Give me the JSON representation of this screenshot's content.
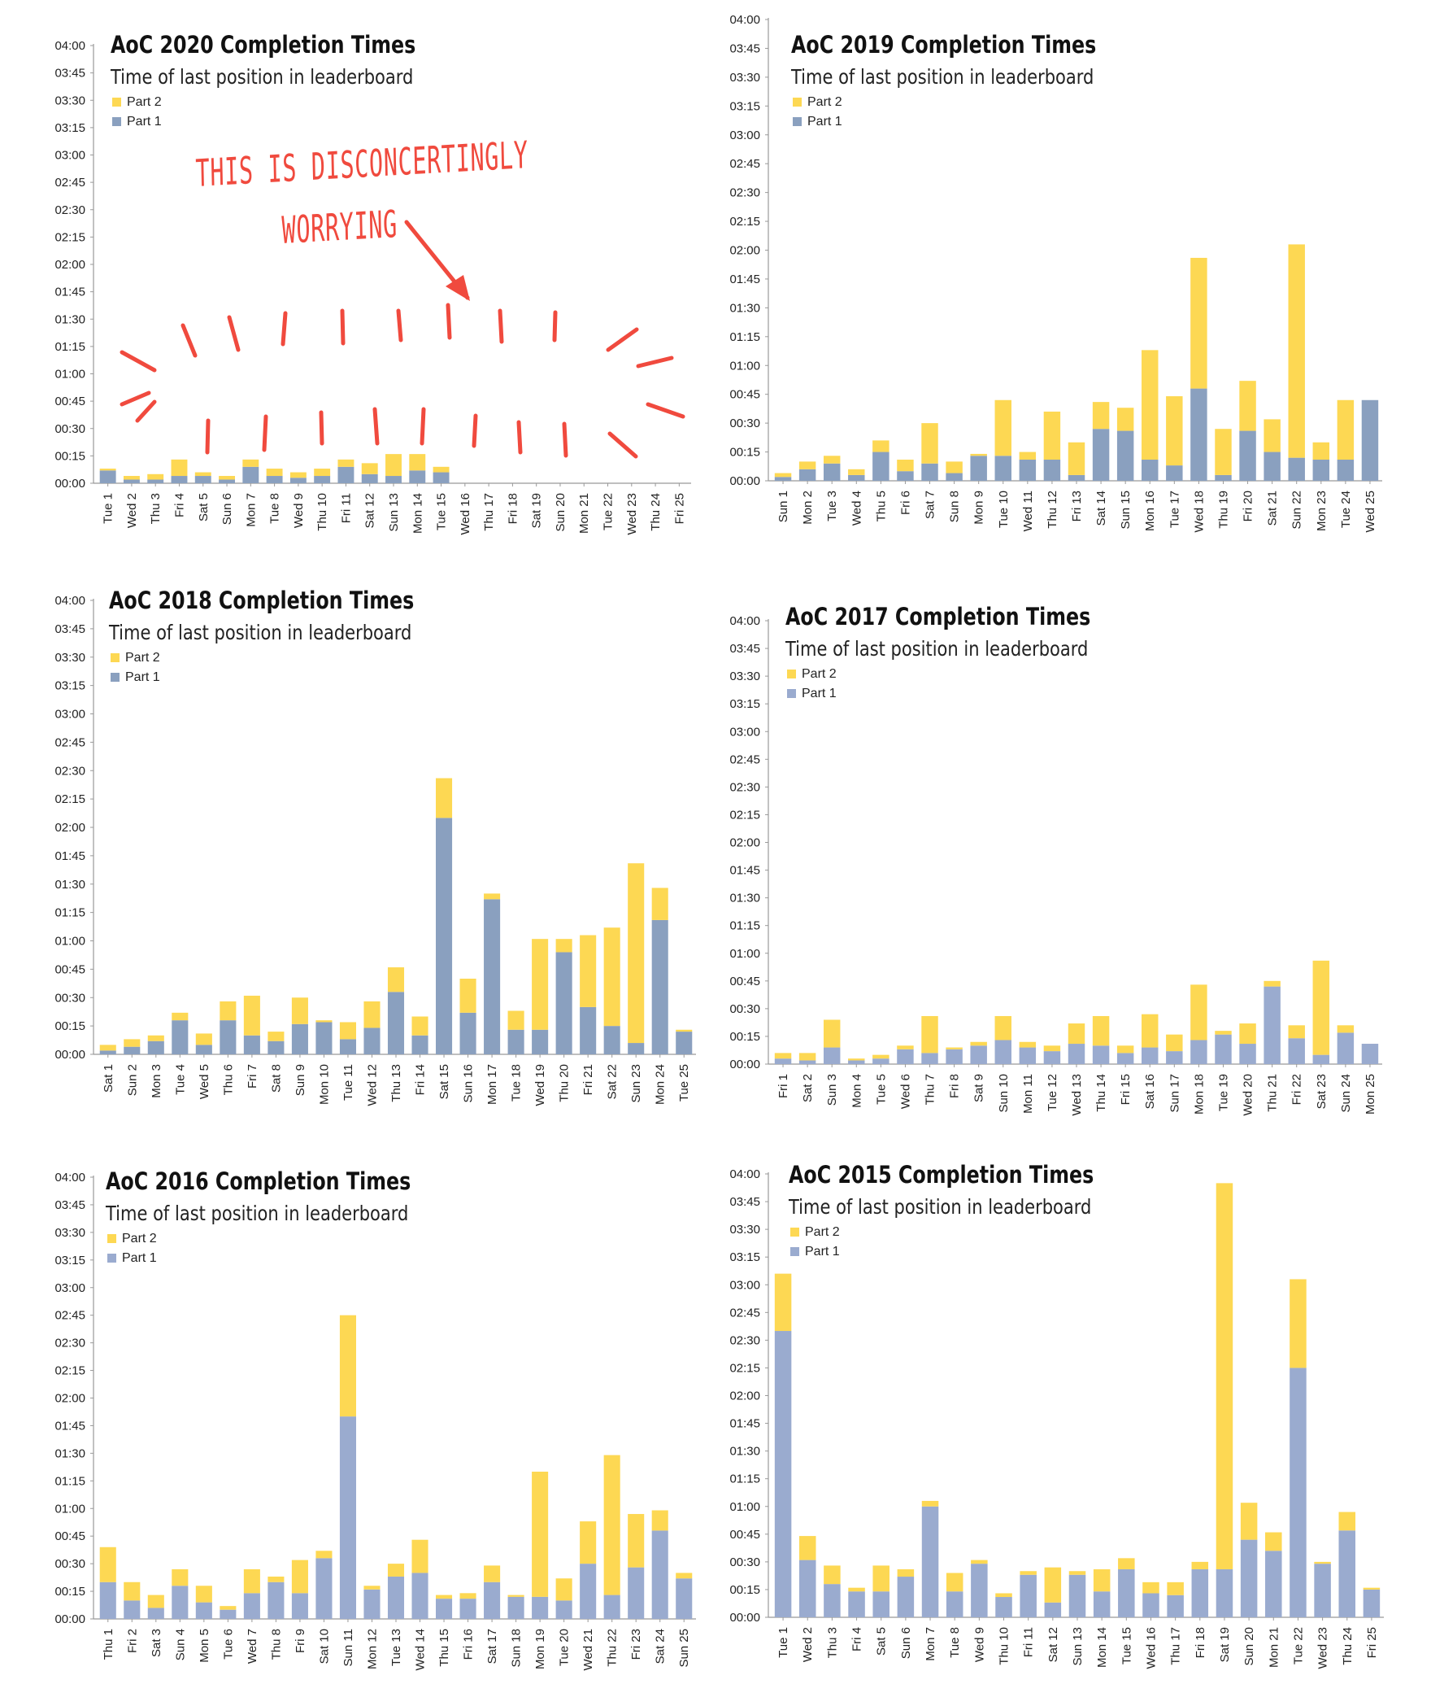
{
  "colors": {
    "part1": "#8aa0bf",
    "part1_light": "#9aabcf",
    "part2": "#fdd853",
    "axis": "#999999",
    "annotation": "#f04a3e"
  },
  "yticks": [
    "00:00",
    "00:15",
    "00:30",
    "00:45",
    "01:00",
    "01:15",
    "01:30",
    "01:45",
    "02:00",
    "02:15",
    "02:30",
    "02:45",
    "03:00",
    "03:15",
    "03:30",
    "03:45",
    "04:00"
  ],
  "annotation": {
    "line1": "THIS IS DISCONCERTINGLY",
    "line2": "WORRYING",
    "icon": "hand-drawn-arrow-and-ray-strokes"
  },
  "chart_data": [
    {
      "type": "bar",
      "stacked": true,
      "title": "AoC 2020 Completion Times",
      "subtitle": "Time of last position in leaderboard",
      "legend": [
        "Part 2",
        "Part 1"
      ],
      "legend_position": "top-left",
      "y_unit": "minutes",
      "ylim": [
        0,
        240
      ],
      "categories": [
        "Tue 1",
        "Wed 2",
        "Thu 3",
        "Fri 4",
        "Sat 5",
        "Sun 6",
        "Mon 7",
        "Tue 8",
        "Wed 9",
        "Thu 10",
        "Fri 11",
        "Sat 12",
        "Sun 13",
        "Mon 14",
        "Tue 15",
        "Wed 16",
        "Thu 17",
        "Fri 18",
        "Sat 19",
        "Sun 20",
        "Mon 21",
        "Tue 22",
        "Wed 23",
        "Thu 24",
        "Fri 25"
      ],
      "series": [
        {
          "name": "Part 1",
          "values": [
            7,
            2,
            2,
            4,
            4,
            2,
            9,
            4,
            3,
            4,
            9,
            5,
            4,
            7,
            6,
            null,
            null,
            null,
            null,
            null,
            null,
            null,
            null,
            null,
            null
          ]
        },
        {
          "name": "Part 2",
          "values": [
            1,
            2,
            3,
            9,
            2,
            2,
            4,
            4,
            3,
            4,
            4,
            6,
            12,
            9,
            3,
            null,
            null,
            null,
            null,
            null,
            null,
            null,
            null,
            null,
            null
          ]
        }
      ]
    },
    {
      "type": "bar",
      "stacked": true,
      "title": "AoC 2019 Completion Times",
      "subtitle": "Time of last position in leaderboard",
      "legend": [
        "Part 2",
        "Part 1"
      ],
      "legend_position": "top-left",
      "y_unit": "minutes",
      "ylim": [
        0,
        240
      ],
      "categories": [
        "Sun 1",
        "Mon 2",
        "Tue 3",
        "Wed 4",
        "Thu 5",
        "Fri 6",
        "Sat 7",
        "Sun 8",
        "Mon 9",
        "Tue 10",
        "Wed 11",
        "Thu 12",
        "Fri 13",
        "Sat 14",
        "Sun 15",
        "Mon 16",
        "Tue 17",
        "Wed 18",
        "Thu 19",
        "Fri 20",
        "Sat 21",
        "Sun 22",
        "Mon 23",
        "Tue 24",
        "Wed 25"
      ],
      "series": [
        {
          "name": "Part 1",
          "values": [
            2,
            6,
            9,
            3,
            15,
            5,
            9,
            4,
            13,
            13,
            11,
            11,
            3,
            27,
            26,
            11,
            8,
            48,
            3,
            26,
            15,
            12,
            11,
            11,
            42
          ]
        },
        {
          "name": "Part 2",
          "values": [
            2,
            4,
            4,
            3,
            6,
            6,
            21,
            6,
            1,
            29,
            4,
            25,
            17,
            14,
            12,
            57,
            36,
            68,
            24,
            26,
            17,
            111,
            9,
            31,
            0
          ]
        }
      ]
    },
    {
      "type": "bar",
      "stacked": true,
      "title": "AoC 2018 Completion Times",
      "subtitle": "Time of last position in leaderboard",
      "legend": [
        "Part 2",
        "Part 1"
      ],
      "legend_position": "top-left",
      "y_unit": "minutes",
      "ylim": [
        0,
        240
      ],
      "categories": [
        "Sat 1",
        "Sun 2",
        "Mon 3",
        "Tue 4",
        "Wed 5",
        "Thu 6",
        "Fri 7",
        "Sat 8",
        "Sun 9",
        "Mon 10",
        "Tue 11",
        "Wed 12",
        "Thu 13",
        "Fri 14",
        "Sat 15",
        "Sun 16",
        "Mon 17",
        "Tue 18",
        "Wed 19",
        "Thu 20",
        "Fri 21",
        "Sat 22",
        "Sun 23",
        "Mon 24",
        "Tue 25"
      ],
      "series": [
        {
          "name": "Part 1",
          "values": [
            2,
            4,
            7,
            18,
            5,
            18,
            10,
            7,
            16,
            17,
            8,
            14,
            33,
            10,
            125,
            22,
            82,
            13,
            13,
            54,
            25,
            15,
            6,
            71,
            12
          ]
        },
        {
          "name": "Part 2",
          "values": [
            3,
            4,
            3,
            4,
            6,
            10,
            21,
            5,
            14,
            1,
            9,
            14,
            13,
            10,
            21,
            18,
            3,
            10,
            48,
            7,
            38,
            52,
            95,
            17,
            1
          ]
        }
      ]
    },
    {
      "type": "bar",
      "stacked": true,
      "title": "AoC 2017 Completion Times",
      "subtitle": "Time of last position in leaderboard",
      "legend": [
        "Part 2",
        "Part 1"
      ],
      "legend_position": "top-left",
      "y_unit": "minutes",
      "ylim": [
        0,
        240
      ],
      "categories": [
        "Fri 1",
        "Sat 2",
        "Sun 3",
        "Mon 4",
        "Tue 5",
        "Wed 6",
        "Thu 7",
        "Fri 8",
        "Sat 9",
        "Sun 10",
        "Mon 11",
        "Tue 12",
        "Wed 13",
        "Thu 14",
        "Fri 15",
        "Sat 16",
        "Sun 17",
        "Mon 18",
        "Tue 19",
        "Wed 20",
        "Thu 21",
        "Fri 22",
        "Sat 23",
        "Sun 24",
        "Mon 25"
      ],
      "series": [
        {
          "name": "Part 1",
          "values": [
            3,
            2,
            9,
            2,
            3,
            8,
            6,
            8,
            10,
            13,
            9,
            7,
            11,
            10,
            6,
            9,
            7,
            13,
            16,
            11,
            42,
            14,
            5,
            17,
            11
          ]
        },
        {
          "name": "Part 2",
          "values": [
            3,
            4,
            15,
            1,
            2,
            2,
            20,
            1,
            2,
            13,
            3,
            3,
            11,
            16,
            4,
            18,
            9,
            30,
            2,
            11,
            3,
            7,
            51,
            4,
            0
          ]
        }
      ]
    },
    {
      "type": "bar",
      "stacked": true,
      "title": "AoC 2016 Completion Times",
      "subtitle": "Time of last position in leaderboard",
      "legend": [
        "Part 2",
        "Part 1"
      ],
      "legend_position": "top-left",
      "y_unit": "minutes",
      "ylim": [
        0,
        240
      ],
      "categories": [
        "Thu 1",
        "Fri 2",
        "Sat 3",
        "Sun 4",
        "Mon 5",
        "Tue 6",
        "Wed 7",
        "Thu 8",
        "Fri 9",
        "Sat 10",
        "Sun 11",
        "Mon 12",
        "Tue 13",
        "Wed 14",
        "Thu 15",
        "Fri 16",
        "Sat 17",
        "Sun 18",
        "Mon 19",
        "Tue 20",
        "Wed 21",
        "Thu 22",
        "Fri 23",
        "Sat 24",
        "Sun 25"
      ],
      "series": [
        {
          "name": "Part 1",
          "values": [
            20,
            10,
            6,
            18,
            9,
            5,
            14,
            20,
            14,
            33,
            110,
            16,
            23,
            25,
            11,
            11,
            20,
            12,
            12,
            10,
            30,
            13,
            28,
            48,
            22
          ]
        },
        {
          "name": "Part 2",
          "values": [
            19,
            10,
            7,
            9,
            9,
            2,
            13,
            3,
            18,
            4,
            55,
            2,
            7,
            18,
            2,
            3,
            9,
            1,
            68,
            12,
            23,
            76,
            29,
            11,
            3
          ]
        }
      ]
    },
    {
      "type": "bar",
      "stacked": true,
      "title": "AoC 2015 Completion Times",
      "subtitle": "Time of last position in leaderboard",
      "legend": [
        "Part 2",
        "Part 1"
      ],
      "legend_position": "top-left",
      "y_unit": "minutes",
      "ylim": [
        0,
        240
      ],
      "categories": [
        "Tue 1",
        "Wed 2",
        "Thu 3",
        "Fri 4",
        "Sat 5",
        "Sun 6",
        "Mon 7",
        "Tue 8",
        "Wed 9",
        "Thu 10",
        "Fri 11",
        "Sat 12",
        "Sun 13",
        "Mon 14",
        "Tue 15",
        "Wed 16",
        "Thu 17",
        "Fri 18",
        "Sat 19",
        "Sun 20",
        "Mon 21",
        "Tue 22",
        "Wed 23",
        "Thu 24",
        "Fri 25"
      ],
      "series": [
        {
          "name": "Part 1",
          "values": [
            155,
            31,
            18,
            14,
            14,
            22,
            60,
            14,
            29,
            11,
            23,
            8,
            23,
            14,
            26,
            13,
            12,
            26,
            26,
            42,
            36,
            135,
            29,
            47,
            15
          ]
        },
        {
          "name": "Part 2",
          "values": [
            31,
            13,
            10,
            2,
            14,
            4,
            3,
            10,
            2,
            2,
            2,
            19,
            2,
            12,
            6,
            6,
            7,
            4,
            209,
            20,
            10,
            48,
            1,
            10,
            1
          ]
        }
      ]
    }
  ]
}
